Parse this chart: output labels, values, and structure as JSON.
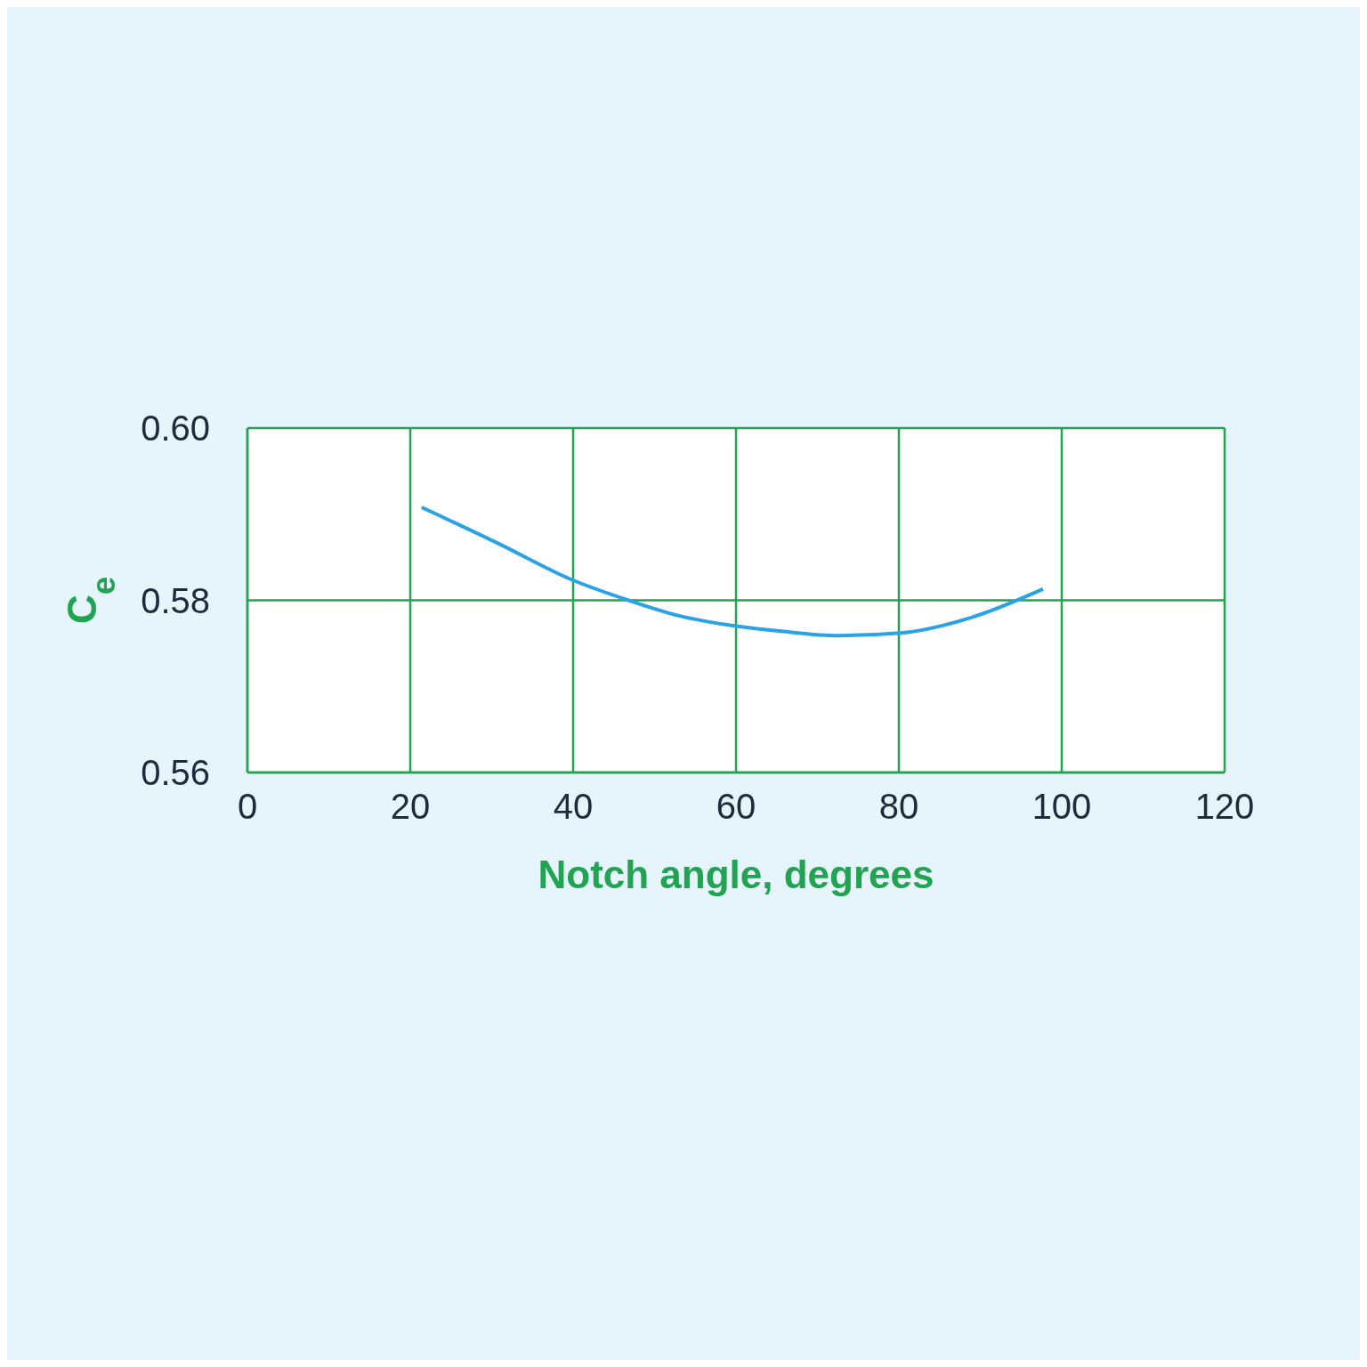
{
  "chart_data": {
    "type": "line",
    "xlabel": "Notch angle, degrees",
    "ylabel": "C$_{e}$",
    "x": [
      21.4,
      30.8,
      39.8,
      46.8,
      53,
      60,
      65.6,
      72.6,
      80.2,
      88.9,
      97.7
    ],
    "series": [
      {
        "color": "#2aa3e6",
        "values": [
          0.5908,
          0.5866,
          0.5824,
          0.58,
          0.5782,
          0.577,
          0.5764,
          0.5759,
          0.5762,
          0.578,
          0.5813
        ]
      }
    ],
    "xlim": [
      0,
      120
    ],
    "xticks": [
      0,
      20,
      40,
      60,
      80,
      100,
      120
    ],
    "ylim": [
      0.56,
      0.6
    ],
    "yticks": [
      0.56,
      0.58,
      {
        "value": 0.6,
        "label": "0.60"
      }
    ],
    "grid": true,
    "marker": "none",
    "line_style": "solid"
  }
}
